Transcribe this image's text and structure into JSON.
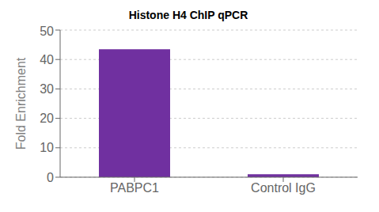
{
  "chart_data": {
    "type": "bar",
    "title": "Histone H4 ChIP qPCR",
    "ylabel": "Fold Enrichment",
    "categories": [
      "PABPC1",
      "Control IgG"
    ],
    "values": [
      43.5,
      1.0
    ],
    "color": "#7030A0",
    "ylim": [
      0,
      50
    ],
    "yticks": [
      0,
      10,
      20,
      30,
      40,
      50
    ],
    "grid": true
  }
}
